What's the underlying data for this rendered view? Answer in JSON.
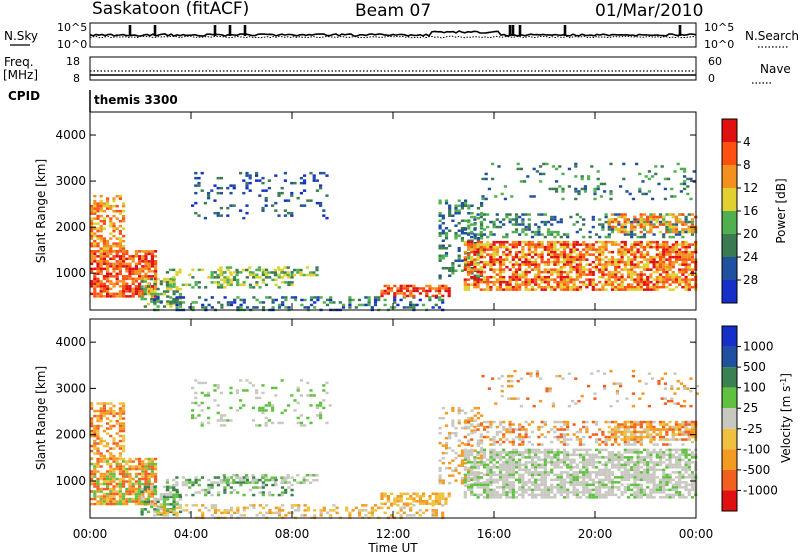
{
  "header": {
    "station": "Saskatoon (fitACF)",
    "beam": "Beam 07",
    "date": "01/Mar/2010",
    "program": "themis 3300"
  },
  "strip": {
    "nsky_label": "N.Sky",
    "nsearch_label": "N.Search",
    "nsky_top": "10^5",
    "nsky_bottom": "10^0",
    "nsearch_top": "10^5",
    "nsearch_bottom": "10^0",
    "freq_label_1": "Freq.",
    "freq_label_2": "[MHz]",
    "freq_top": "18",
    "freq_bottom": "8",
    "nave_label": "Nave",
    "nave_top": "60",
    "nave_bottom": "0",
    "cpid_label": "CPID"
  },
  "colors": {
    "power": [
      "#1530c8",
      "#2050a0",
      "#3a7a50",
      "#50b050",
      "#e0d030",
      "#f39020",
      "#ff5010",
      "#e01010"
    ],
    "velocity": [
      "#e01010",
      "#f26020",
      "#f39a20",
      "#f0c040",
      "#c8c8c0",
      "#60c040",
      "#3a8050",
      "#2050a0",
      "#1530c8"
    ]
  },
  "chart_data": [
    {
      "type": "heatmap",
      "panel": "power",
      "x": [
        "00:00",
        "04:00",
        "08:00",
        "12:00",
        "16:00",
        "20:00",
        "00:00"
      ],
      "ylabel": "Slant Range [km]",
      "yticks": [
        "1000",
        "2000",
        "3000",
        "4000"
      ],
      "ylim": [
        200,
        4500
      ],
      "colorbar_label": "Power [dB]",
      "colorbar_ticks": [
        "4",
        "8",
        "12",
        "16",
        "20",
        "24",
        "28"
      ]
    },
    {
      "type": "heatmap",
      "panel": "velocity",
      "x": [
        "00:00",
        "04:00",
        "08:00",
        "12:00",
        "16:00",
        "20:00",
        "00:00"
      ],
      "xlabel": "Time UT",
      "ylabel": "Slant Range [km]",
      "yticks": [
        "1000",
        "2000",
        "3000",
        "4000"
      ],
      "ylim": [
        200,
        4500
      ],
      "colorbar_label": "Velocity [m s^-1]",
      "colorbar_ticks": [
        "1000",
        "500",
        "100",
        "25",
        "-25",
        "-100",
        "-500",
        "-1000"
      ]
    }
  ]
}
